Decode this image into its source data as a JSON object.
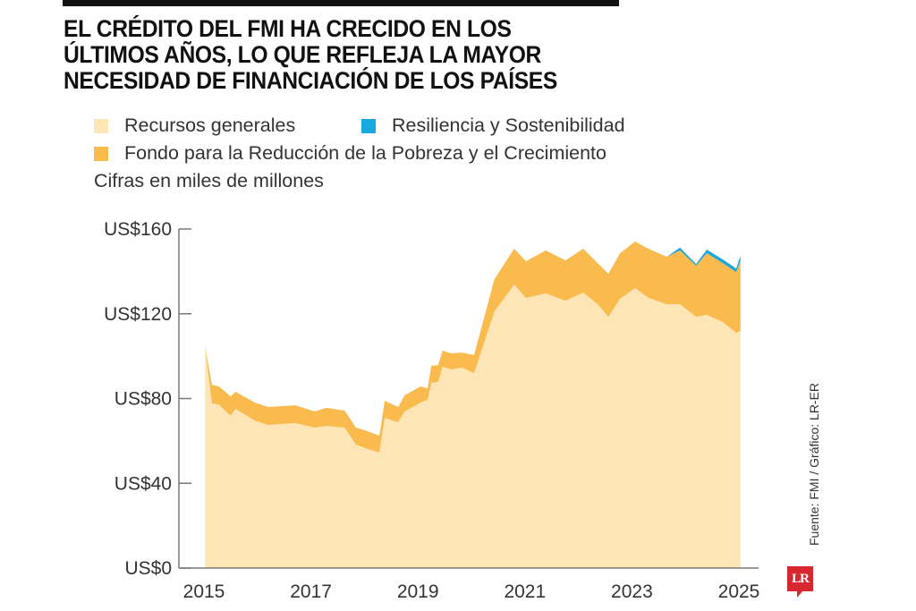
{
  "header": {
    "title": "EL CRÉDITO DEL FMI HA CRECIDO EN LOS ÚLTIMOS AÑOS, LO QUE REFLEJA LA MAYOR NECESIDAD DE FINANCIACIÓN DE LOS PAÍSES"
  },
  "legend": {
    "items": [
      {
        "label": "Recursos generales",
        "color": "#fde5b5"
      },
      {
        "label": "Resiliencia y Sostenibilidad",
        "color": "#1aa8e0"
      },
      {
        "label": "Fondo para la Reducción de la Pobreza y el Crecimiento",
        "color": "#f9ba4e"
      }
    ],
    "units": "Cifras en miles de millones"
  },
  "footer": {
    "source": "Fuente: FMI / Gráfico: LR-ER",
    "logo": "LR",
    "logo_color": "#d7282f"
  },
  "chart_data": {
    "type": "area",
    "stacked": true,
    "title": "EL CRÉDITO DEL FMI HA CRECIDO EN LOS ÚLTIMOS AÑOS, LO QUE REFLEJA LA MAYOR NECESIDAD DE FINANCIACIÓN DE LOS PAÍSES",
    "xlabel": "",
    "ylabel": "Cifras en miles de millones",
    "xlim": [
      2015,
      2025
    ],
    "ylim": [
      0,
      160
    ],
    "x_ticks": [
      2015,
      2017,
      2019,
      2021,
      2023,
      2025
    ],
    "x_tick_labels": [
      "2015",
      "2017",
      "2019",
      "2021",
      "2023",
      "2025"
    ],
    "y_ticks": [
      0,
      40,
      80,
      120,
      160
    ],
    "y_tick_labels": [
      "US$0",
      "US$40",
      "US$80",
      "US$120",
      "US$160"
    ],
    "grid": false,
    "legend_position": "top-left",
    "x": [
      2015.02,
      2015.15,
      2015.28,
      2015.5,
      2015.59,
      2015.95,
      2016.2,
      2016.45,
      2016.71,
      2017.07,
      2017.29,
      2017.63,
      2017.84,
      2018.01,
      2018.28,
      2018.38,
      2018.63,
      2018.75,
      2019.05,
      2019.18,
      2019.25,
      2019.38,
      2019.46,
      2019.63,
      2019.82,
      2020.05,
      2020.43,
      2020.8,
      2021.02,
      2021.39,
      2021.76,
      2022.09,
      2022.36,
      2022.56,
      2022.78,
      2023.06,
      2023.31,
      2023.65,
      2023.9,
      2024.2,
      2024.4,
      2024.7,
      2024.95,
      2025.03
    ],
    "series": [
      {
        "name": "Recursos generales",
        "color": "#fde5b5",
        "values": [
          104.7,
          77.7,
          77.2,
          71.8,
          75.1,
          69.6,
          67.5,
          68.0,
          68.4,
          66.3,
          67.1,
          66.3,
          58.3,
          56.6,
          54.5,
          70.9,
          68.8,
          73.9,
          78.1,
          79.4,
          87.4,
          87.8,
          95.0,
          93.7,
          94.6,
          92.0,
          121.1,
          133.8,
          127.5,
          129.6,
          126.2,
          130.0,
          124.5,
          118.6,
          127.1,
          132.1,
          127.5,
          124.5,
          124.5,
          118.6,
          119.5,
          116.1,
          111.0,
          111.9
        ]
      },
      {
        "name": "Fondo para la Reducción de la Pobreza y el Crecimiento",
        "color": "#f9ba4e",
        "values": [
          0.0,
          8.8,
          8.5,
          9.2,
          8.1,
          8.5,
          8.5,
          8.4,
          8.4,
          7.6,
          8.5,
          8.0,
          8.0,
          8.4,
          8.0,
          8.0,
          7.2,
          7.6,
          7.6,
          5.4,
          8.0,
          8.0,
          7.6,
          7.6,
          7.1,
          8.5,
          15.2,
          16.9,
          17.3,
          20.3,
          19.0,
          20.7,
          19.4,
          20.3,
          21.5,
          22.0,
          23.2,
          22.4,
          25.4,
          24.1,
          29.1,
          27.8,
          28.7,
          33.3
        ]
      },
      {
        "name": "Resiliencia y Sostenibilidad",
        "color": "#1aa8e0",
        "values": [
          0,
          0,
          0,
          0,
          0,
          0,
          0,
          0,
          0,
          0,
          0,
          0,
          0,
          0,
          0,
          0,
          0,
          0,
          0,
          0,
          0,
          0,
          0,
          0,
          0,
          0,
          0,
          0,
          0,
          0,
          0,
          0,
          0,
          0,
          0,
          0,
          0,
          0,
          1.3,
          0.8,
          1.7,
          1.7,
          1.7,
          2.1
        ]
      }
    ]
  }
}
